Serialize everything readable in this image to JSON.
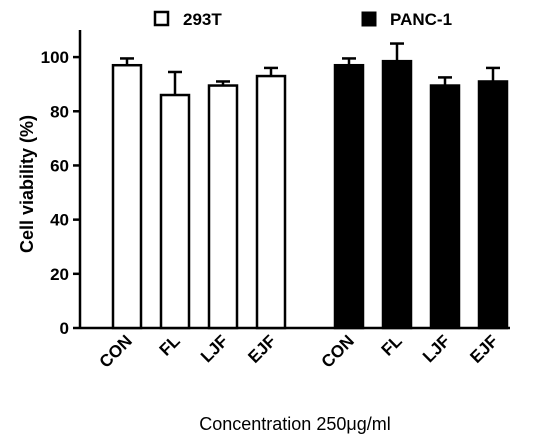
{
  "chart_data": {
    "type": "bar",
    "categories": [
      "CON",
      "FL",
      "LJF",
      "EJF"
    ],
    "series": [
      {
        "name": "293T",
        "values": [
          97,
          86,
          89.5,
          93
        ],
        "errors": [
          2.5,
          8.5,
          1.5,
          3
        ],
        "fill": "#ffffff",
        "stroke": "#000000"
      },
      {
        "name": "PANC-1",
        "values": [
          97,
          98.5,
          89.5,
          91
        ],
        "errors": [
          2.5,
          6.5,
          3,
          5
        ],
        "fill": "#000000",
        "stroke": "#000000"
      }
    ],
    "ylabel": "Cell viability (%)",
    "xlabel": "Concentration 250μg/ml",
    "ylim": [
      0,
      110
    ],
    "yticks": [
      0,
      20,
      40,
      60,
      80,
      100
    ],
    "legend_position": "top",
    "grid": false
  }
}
